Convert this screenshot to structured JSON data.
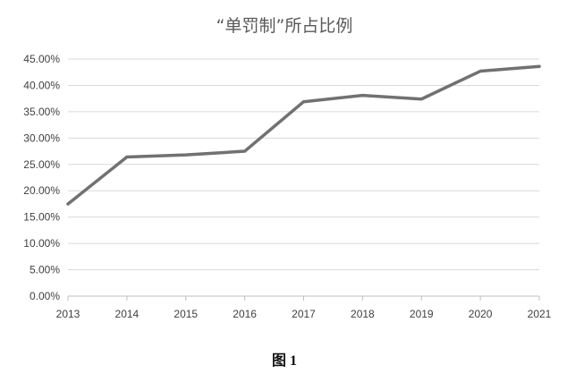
{
  "chart_data": {
    "type": "line",
    "title": "“单罚制”所占比例",
    "xlabel": "",
    "ylabel": "",
    "x": [
      "2013",
      "2014",
      "2015",
      "2016",
      "2017",
      "2018",
      "2019",
      "2020",
      "2021"
    ],
    "series": [
      {
        "values": [
          17.5,
          26.4,
          26.8,
          27.5,
          36.9,
          38.1,
          37.4,
          42.7,
          43.6
        ]
      }
    ],
    "ylim": [
      0,
      45
    ],
    "yticks": [
      "0.00%",
      "5.00%",
      "10.00%",
      "15.00%",
      "20.00%",
      "25.00%",
      "30.00%",
      "35.00%",
      "40.00%",
      "45.00%"
    ],
    "grid": "horizontal",
    "legend": "none",
    "line_color": "#717171",
    "grid_color": "#d9d9d9"
  },
  "caption": "图 1"
}
